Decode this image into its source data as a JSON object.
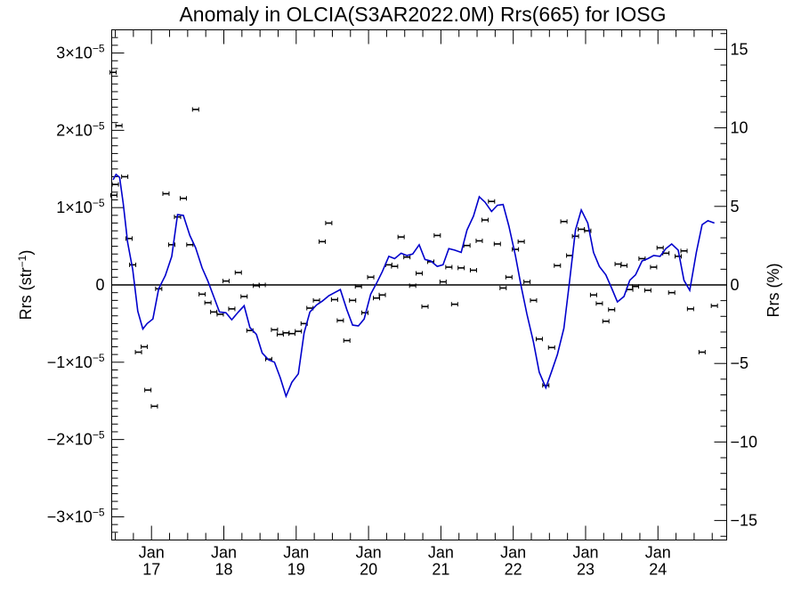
{
  "chart_data": {
    "type": "scatter",
    "title": "Anomaly in OLCIA(S3AR2022.0M) Rrs(665) for IOSG",
    "ylabel_left": "Rrs (str",
    "ylabel_left_sup": "−1",
    "ylabel_left_end": ")",
    "ylabel_right": "Rrs (%)",
    "y_left_range": [
      -3.3e-05,
      3.3e-05
    ],
    "y_right_range": [
      -16.24,
      16.24
    ],
    "x_range": [
      2016.45,
      2024.95
    ],
    "left_ticks": [
      {
        "value": 3e-05,
        "mantissa": "3",
        "sign": ""
      },
      {
        "value": 2e-05,
        "mantissa": "2",
        "sign": ""
      },
      {
        "value": 1e-05,
        "mantissa": "1",
        "sign": ""
      },
      {
        "value": 0,
        "plain": "0"
      },
      {
        "value": -1e-05,
        "mantissa": "1",
        "sign": "−"
      },
      {
        "value": -2e-05,
        "mantissa": "2",
        "sign": "−"
      },
      {
        "value": -3e-05,
        "mantissa": "3",
        "sign": "−"
      }
    ],
    "left_tick_times": "×10",
    "left_tick_exp": "−5",
    "right_ticks": [
      {
        "value": 15,
        "label": "15"
      },
      {
        "value": 10,
        "label": "10"
      },
      {
        "value": 5,
        "label": "5"
      },
      {
        "value": 0,
        "label": "0"
      },
      {
        "value": -5,
        "label": "−5"
      },
      {
        "value": -10,
        "label": "−10"
      },
      {
        "value": -15,
        "label": "−15"
      }
    ],
    "x_ticks": [
      {
        "value": 2017.0,
        "month": "Jan",
        "year": "17"
      },
      {
        "value": 2018.0,
        "month": "Jan",
        "year": "18"
      },
      {
        "value": 2019.0,
        "month": "Jan",
        "year": "19"
      },
      {
        "value": 2020.0,
        "month": "Jan",
        "year": "20"
      },
      {
        "value": 2021.0,
        "month": "Jan",
        "year": "21"
      },
      {
        "value": 2022.0,
        "month": "Jan",
        "year": "22"
      },
      {
        "value": 2023.0,
        "month": "Jan",
        "year": "23"
      },
      {
        "value": 2024.0,
        "month": "Jan",
        "year": "24"
      }
    ],
    "points": [
      {
        "x": 2016.47,
        "y": 2.75e-05
      },
      {
        "x": 2016.48,
        "y": 1.16e-05
      },
      {
        "x": 2016.5,
        "y": 1.3e-05
      },
      {
        "x": 2016.55,
        "y": 2.06e-05
      },
      {
        "x": 2016.63,
        "y": 1.4e-05
      },
      {
        "x": 2016.69,
        "y": 6e-06
      },
      {
        "x": 2016.74,
        "y": 2.6e-06
      },
      {
        "x": 2016.82,
        "y": -8.7e-06
      },
      {
        "x": 2016.9,
        "y": -8e-06
      },
      {
        "x": 2016.95,
        "y": -1.36e-05
      },
      {
        "x": 2017.04,
        "y": -1.57e-05
      },
      {
        "x": 2017.1,
        "y": -5e-07
      },
      {
        "x": 2017.2,
        "y": 1.18e-05
      },
      {
        "x": 2017.28,
        "y": 5.2e-06
      },
      {
        "x": 2017.36,
        "y": 8.8e-06
      },
      {
        "x": 2017.44,
        "y": 1.12e-05
      },
      {
        "x": 2017.53,
        "y": 5.2e-06
      },
      {
        "x": 2017.61,
        "y": 2.27e-05
      },
      {
        "x": 2017.7,
        "y": -1.2e-06
      },
      {
        "x": 2017.78,
        "y": -2.3e-06
      },
      {
        "x": 2017.86,
        "y": -3.5e-06
      },
      {
        "x": 2017.95,
        "y": -3.8e-06
      },
      {
        "x": 2018.03,
        "y": 5e-07
      },
      {
        "x": 2018.11,
        "y": -3.1e-06
      },
      {
        "x": 2018.2,
        "y": 1.6e-06
      },
      {
        "x": 2018.28,
        "y": -1.5e-06
      },
      {
        "x": 2018.36,
        "y": -5.9e-06
      },
      {
        "x": 2018.45,
        "y": -1e-07
      },
      {
        "x": 2018.53,
        "y": 0.0
      },
      {
        "x": 2018.62,
        "y": -9.6e-06
      },
      {
        "x": 2018.7,
        "y": -5.8e-06
      },
      {
        "x": 2018.78,
        "y": -6.4e-06
      },
      {
        "x": 2018.86,
        "y": -6.2e-06
      },
      {
        "x": 2018.94,
        "y": -6.3e-06
      },
      {
        "x": 2019.03,
        "y": -6e-06
      },
      {
        "x": 2019.11,
        "y": -5e-06
      },
      {
        "x": 2019.19,
        "y": -3e-06
      },
      {
        "x": 2019.28,
        "y": -2e-06
      },
      {
        "x": 2019.36,
        "y": 5.6e-06
      },
      {
        "x": 2019.45,
        "y": 8e-06
      },
      {
        "x": 2019.53,
        "y": -1.9e-06
      },
      {
        "x": 2019.61,
        "y": -4.6e-06
      },
      {
        "x": 2019.7,
        "y": -7.2e-06
      },
      {
        "x": 2019.78,
        "y": -2e-06
      },
      {
        "x": 2019.86,
        "y": -2e-07
      },
      {
        "x": 2019.95,
        "y": -3.6e-06
      },
      {
        "x": 2020.03,
        "y": 1e-06
      },
      {
        "x": 2020.11,
        "y": -1.7e-06
      },
      {
        "x": 2020.19,
        "y": -1.3e-06
      },
      {
        "x": 2020.28,
        "y": 2.6e-06
      },
      {
        "x": 2020.36,
        "y": 2.4e-06
      },
      {
        "x": 2020.45,
        "y": 6.2e-06
      },
      {
        "x": 2020.53,
        "y": 3.6e-06
      },
      {
        "x": 2020.61,
        "y": -1e-07
      },
      {
        "x": 2020.7,
        "y": 1.5e-06
      },
      {
        "x": 2020.78,
        "y": -2.8e-06
      },
      {
        "x": 2020.86,
        "y": 3e-06
      },
      {
        "x": 2020.95,
        "y": 6.4e-06
      },
      {
        "x": 2021.03,
        "y": 4e-07
      },
      {
        "x": 2021.11,
        "y": 2.3e-06
      },
      {
        "x": 2021.19,
        "y": -2.5e-06
      },
      {
        "x": 2021.28,
        "y": 2.2e-06
      },
      {
        "x": 2021.36,
        "y": 5.1e-06
      },
      {
        "x": 2021.45,
        "y": 1.9e-06
      },
      {
        "x": 2021.53,
        "y": 5.7e-06
      },
      {
        "x": 2021.61,
        "y": 8.4e-06
      },
      {
        "x": 2021.7,
        "y": 1.08e-05
      },
      {
        "x": 2021.78,
        "y": 5.3e-06
      },
      {
        "x": 2021.86,
        "y": -4e-07
      },
      {
        "x": 2021.94,
        "y": 1e-06
      },
      {
        "x": 2022.03,
        "y": 4.6e-06
      },
      {
        "x": 2022.11,
        "y": 5.6e-06
      },
      {
        "x": 2022.19,
        "y": 4e-07
      },
      {
        "x": 2022.28,
        "y": -2e-06
      },
      {
        "x": 2022.36,
        "y": -7e-06
      },
      {
        "x": 2022.45,
        "y": -1.3e-05
      },
      {
        "x": 2022.53,
        "y": -8.1e-06
      },
      {
        "x": 2022.61,
        "y": 2.5e-06
      },
      {
        "x": 2022.7,
        "y": 8.2e-06
      },
      {
        "x": 2022.78,
        "y": 3.8e-06
      },
      {
        "x": 2022.86,
        "y": 6.3e-06
      },
      {
        "x": 2022.94,
        "y": 7.2e-06
      },
      {
        "x": 2023.03,
        "y": 7e-06
      },
      {
        "x": 2023.11,
        "y": -1.3e-06
      },
      {
        "x": 2023.19,
        "y": -2.4e-06
      },
      {
        "x": 2023.28,
        "y": -4.7e-06
      },
      {
        "x": 2023.36,
        "y": -3.2e-06
      },
      {
        "x": 2023.45,
        "y": 2.7e-06
      },
      {
        "x": 2023.53,
        "y": 2.5e-06
      },
      {
        "x": 2023.61,
        "y": -6e-07
      },
      {
        "x": 2023.69,
        "y": -2e-07
      },
      {
        "x": 2023.78,
        "y": 3.4e-06
      },
      {
        "x": 2023.86,
        "y": -7e-07
      },
      {
        "x": 2023.94,
        "y": 2.3e-06
      },
      {
        "x": 2024.03,
        "y": 4.8e-06
      },
      {
        "x": 2024.11,
        "y": 4.1e-06
      },
      {
        "x": 2024.19,
        "y": -1e-06
      },
      {
        "x": 2024.28,
        "y": 3.7e-06
      },
      {
        "x": 2024.36,
        "y": 4.4e-06
      },
      {
        "x": 2024.45,
        "y": -3.1e-06
      },
      {
        "x": 2024.61,
        "y": -8.7e-06
      },
      {
        "x": 2024.78,
        "y": -2.7e-06
      }
    ],
    "smooth_line": [
      {
        "x": 2016.47,
        "y": 1.36e-05
      },
      {
        "x": 2016.51,
        "y": 1.43e-05
      },
      {
        "x": 2016.56,
        "y": 1.39e-05
      },
      {
        "x": 2016.61,
        "y": 1.05e-05
      },
      {
        "x": 2016.67,
        "y": 5.5e-06
      },
      {
        "x": 2016.74,
        "y": 2e-06
      },
      {
        "x": 2016.81,
        "y": -3.4e-06
      },
      {
        "x": 2016.88,
        "y": -5.7e-06
      },
      {
        "x": 2016.94,
        "y": -5e-06
      },
      {
        "x": 2017.02,
        "y": -4.4e-06
      },
      {
        "x": 2017.1,
        "y": -5e-07
      },
      {
        "x": 2017.19,
        "y": 1.2e-06
      },
      {
        "x": 2017.28,
        "y": 3.7e-06
      },
      {
        "x": 2017.36,
        "y": 9.1e-06
      },
      {
        "x": 2017.44,
        "y": 9e-06
      },
      {
        "x": 2017.53,
        "y": 6.4e-06
      },
      {
        "x": 2017.61,
        "y": 4.8e-06
      },
      {
        "x": 2017.7,
        "y": 2.2e-06
      },
      {
        "x": 2017.78,
        "y": 5e-07
      },
      {
        "x": 2017.86,
        "y": -1.5e-06
      },
      {
        "x": 2017.94,
        "y": -3.5e-06
      },
      {
        "x": 2018.03,
        "y": -3.6e-06
      },
      {
        "x": 2018.11,
        "y": -4.5e-06
      },
      {
        "x": 2018.2,
        "y": -3.5e-06
      },
      {
        "x": 2018.28,
        "y": -2.7e-06
      },
      {
        "x": 2018.36,
        "y": -5.5e-06
      },
      {
        "x": 2018.45,
        "y": -6.4e-06
      },
      {
        "x": 2018.53,
        "y": -8.8e-06
      },
      {
        "x": 2018.62,
        "y": -9.7e-06
      },
      {
        "x": 2018.7,
        "y": -1e-05
      },
      {
        "x": 2018.78,
        "y": -1.2e-05
      },
      {
        "x": 2018.86,
        "y": -1.44e-05
      },
      {
        "x": 2018.94,
        "y": -1.26e-05
      },
      {
        "x": 2019.03,
        "y": -1.15e-05
      },
      {
        "x": 2019.11,
        "y": -6.2e-06
      },
      {
        "x": 2019.19,
        "y": -3.5e-06
      },
      {
        "x": 2019.28,
        "y": -2.6e-06
      },
      {
        "x": 2019.36,
        "y": -2.1e-06
      },
      {
        "x": 2019.45,
        "y": -1.4e-06
      },
      {
        "x": 2019.53,
        "y": -1e-06
      },
      {
        "x": 2019.61,
        "y": -6e-07
      },
      {
        "x": 2019.7,
        "y": -3.2e-06
      },
      {
        "x": 2019.78,
        "y": -5.2e-06
      },
      {
        "x": 2019.86,
        "y": -5.3e-06
      },
      {
        "x": 2019.94,
        "y": -4.4e-06
      },
      {
        "x": 2020.03,
        "y": -1.2e-06
      },
      {
        "x": 2020.11,
        "y": 2e-07
      },
      {
        "x": 2020.19,
        "y": 1.7e-06
      },
      {
        "x": 2020.28,
        "y": 3.7e-06
      },
      {
        "x": 2020.36,
        "y": 3.4e-06
      },
      {
        "x": 2020.45,
        "y": 4.1e-06
      },
      {
        "x": 2020.53,
        "y": 3.8e-06
      },
      {
        "x": 2020.61,
        "y": 4e-06
      },
      {
        "x": 2020.7,
        "y": 5.2e-06
      },
      {
        "x": 2020.78,
        "y": 3.3e-06
      },
      {
        "x": 2020.86,
        "y": 3.1e-06
      },
      {
        "x": 2020.95,
        "y": 2.4e-06
      },
      {
        "x": 2021.03,
        "y": 2.6e-06
      },
      {
        "x": 2021.11,
        "y": 4.7e-06
      },
      {
        "x": 2021.19,
        "y": 4.5e-06
      },
      {
        "x": 2021.28,
        "y": 4.2e-06
      },
      {
        "x": 2021.36,
        "y": 7.1e-06
      },
      {
        "x": 2021.45,
        "y": 8.9e-06
      },
      {
        "x": 2021.53,
        "y": 1.14e-05
      },
      {
        "x": 2021.61,
        "y": 1.07e-05
      },
      {
        "x": 2021.7,
        "y": 9.5e-06
      },
      {
        "x": 2021.78,
        "y": 1.03e-05
      },
      {
        "x": 2021.86,
        "y": 1.04e-05
      },
      {
        "x": 2021.94,
        "y": 7.6e-06
      },
      {
        "x": 2022.03,
        "y": 3.8e-06
      },
      {
        "x": 2022.11,
        "y": -2e-07
      },
      {
        "x": 2022.19,
        "y": -3.8e-06
      },
      {
        "x": 2022.28,
        "y": -7.4e-06
      },
      {
        "x": 2022.36,
        "y": -1.13e-05
      },
      {
        "x": 2022.45,
        "y": -1.33e-05
      },
      {
        "x": 2022.53,
        "y": -1.12e-05
      },
      {
        "x": 2022.61,
        "y": -9e-06
      },
      {
        "x": 2022.7,
        "y": -5.6e-06
      },
      {
        "x": 2022.78,
        "y": 6e-07
      },
      {
        "x": 2022.86,
        "y": 7.1e-06
      },
      {
        "x": 2022.94,
        "y": 9.7e-06
      },
      {
        "x": 2023.03,
        "y": 8e-06
      },
      {
        "x": 2023.11,
        "y": 4.2e-06
      },
      {
        "x": 2023.19,
        "y": 2.4e-06
      },
      {
        "x": 2023.28,
        "y": 1.3e-06
      },
      {
        "x": 2023.36,
        "y": -4e-07
      },
      {
        "x": 2023.44,
        "y": -2.2e-06
      },
      {
        "x": 2023.53,
        "y": -1.5e-06
      },
      {
        "x": 2023.61,
        "y": 6e-07
      },
      {
        "x": 2023.69,
        "y": 1.3e-06
      },
      {
        "x": 2023.78,
        "y": 3.1e-06
      },
      {
        "x": 2023.86,
        "y": 3.4e-06
      },
      {
        "x": 2023.94,
        "y": 3.8e-06
      },
      {
        "x": 2024.03,
        "y": 3.7e-06
      },
      {
        "x": 2024.11,
        "y": 4.7e-06
      },
      {
        "x": 2024.19,
        "y": 5.3e-06
      },
      {
        "x": 2024.28,
        "y": 4.5e-06
      },
      {
        "x": 2024.36,
        "y": 6e-07
      },
      {
        "x": 2024.44,
        "y": -7e-07
      },
      {
        "x": 2024.53,
        "y": 4.2e-06
      },
      {
        "x": 2024.61,
        "y": 7.8e-06
      },
      {
        "x": 2024.69,
        "y": 8.3e-06
      },
      {
        "x": 2024.78,
        "y": 8e-06
      }
    ],
    "colors": {
      "line": "#0000cc",
      "points": "#000000",
      "axes": "#000000",
      "zero_line": "#000000"
    },
    "grid": false,
    "legend": "none"
  }
}
